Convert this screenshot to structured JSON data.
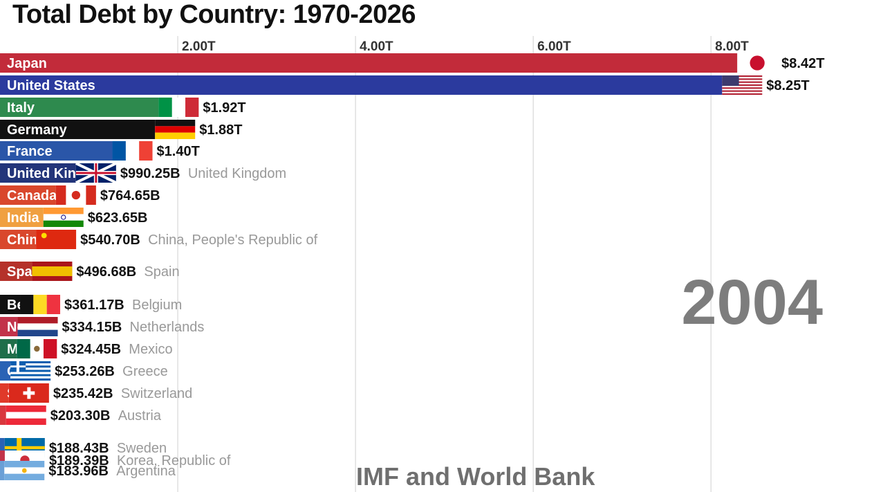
{
  "title": "Total Debt by Country: 1970-2026",
  "year": "2004",
  "source": "IMF and World Bank",
  "chart_data": {
    "type": "bar",
    "orientation": "horizontal",
    "title": "Total Debt by Country: 1970-2026",
    "x_ticks": [
      "2.00T",
      "4.00T",
      "6.00T",
      "8.00T"
    ],
    "xlim": [
      0,
      8.45
    ],
    "x_unit": "trillion USD",
    "grid": true,
    "bars": [
      {
        "label": "Japan",
        "name": "",
        "value": 8.42,
        "value_label": "$8.42T",
        "color": "#c22b3a",
        "flag": "japan-flag"
      },
      {
        "label": "United States",
        "name": "",
        "value": 8.25,
        "value_label": "$8.25T",
        "color": "#2b3a9e",
        "flag": "united-states-flag"
      },
      {
        "label": "Italy",
        "name": "",
        "value": 1.92,
        "value_label": "$1.92T",
        "color": "#2e8a4e",
        "flag": "italy-flag"
      },
      {
        "label": "Germany",
        "name": "",
        "value": 1.88,
        "value_label": "$1.88T",
        "color": "#111111",
        "flag": "germany-flag"
      },
      {
        "label": "France",
        "name": "",
        "value": 1.4,
        "value_label": "$1.40T",
        "color": "#2a56a8",
        "flag": "france-flag"
      },
      {
        "label": "United Kingdom",
        "name": "United Kingdom",
        "value": 0.99025,
        "value_label": "$990.25B",
        "color": "#23357a",
        "flag": "united-kingdom-flag"
      },
      {
        "label": "Canada",
        "name": "",
        "value": 0.76465,
        "value_label": "$764.65B",
        "color": "#d9472c",
        "flag": "canada-flag"
      },
      {
        "label": "India",
        "name": "",
        "value": 0.62365,
        "value_label": "$623.65B",
        "color": "#f0a040",
        "flag": "india-flag"
      },
      {
        "label": "China",
        "name": "China, People's Republic of",
        "value": 0.5407,
        "value_label": "$540.70B",
        "color": "#d9472c",
        "flag": "china-flag"
      },
      {
        "label": "Spain",
        "name": "Spain",
        "value": 0.49668,
        "value_label": "$496.68B",
        "color": "#b5322a",
        "flag": "spain-flag"
      },
      {
        "label": "Belgium",
        "name": "Belgium",
        "value": 0.36117,
        "value_label": "$361.17B",
        "color": "#111111",
        "flag": "belgium-flag"
      },
      {
        "label": "Netherlands",
        "name": "Netherlands",
        "value": 0.33415,
        "value_label": "$334.15B",
        "color": "#c2334a",
        "flag": "netherlands-flag"
      },
      {
        "label": "Mexico",
        "name": "Mexico",
        "value": 0.32445,
        "value_label": "$324.45B",
        "color": "#1f6e4a",
        "flag": "mexico-flag"
      },
      {
        "label": "Greece",
        "name": "Greece",
        "value": 0.25326,
        "value_label": "$253.26B",
        "color": "#2a63b5",
        "flag": "greece-flag"
      },
      {
        "label": "Switzerland",
        "name": "Switzerland",
        "value": 0.23542,
        "value_label": "$235.42B",
        "color": "#e03a2a",
        "flag": "switzerland-flag"
      },
      {
        "label": "Austria",
        "name": "Austria",
        "value": 0.2033,
        "value_label": "$203.30B",
        "color": "#d9383e",
        "flag": "austria-flag"
      },
      {
        "label": "Sweden",
        "name": "Sweden",
        "value": 0.18843,
        "value_label": "$188.43B",
        "color": "#2a63b5",
        "flag": "sweden-flag"
      },
      {
        "label": "Korea, Republic of",
        "name": "Korea, Republic of",
        "value": 0.18939,
        "value_label": "$189.39B",
        "color": "#c2334a",
        "flag": "south-korea-flag"
      },
      {
        "label": "Argentina",
        "name": "Argentina",
        "value": 0.18396,
        "value_label": "$183.96B",
        "color": "#6a9fd6",
        "flag": "argentina-flag"
      }
    ]
  }
}
